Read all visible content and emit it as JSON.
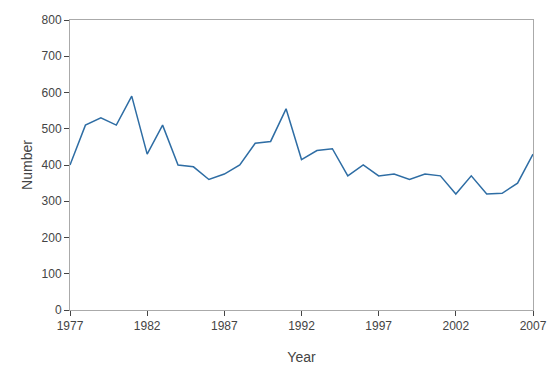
{
  "chart_data": {
    "type": "line",
    "x": [
      1977,
      1978,
      1979,
      1980,
      1981,
      1982,
      1983,
      1984,
      1985,
      1986,
      1987,
      1988,
      1989,
      1990,
      1991,
      1992,
      1993,
      1994,
      1995,
      1996,
      1997,
      1998,
      1999,
      2000,
      2001,
      2002,
      2003,
      2004,
      2005,
      2006,
      2007
    ],
    "values": [
      400,
      510,
      530,
      510,
      590,
      430,
      510,
      400,
      395,
      360,
      375,
      400,
      460,
      465,
      555,
      415,
      440,
      445,
      370,
      400,
      370,
      375,
      360,
      375,
      370,
      320,
      370,
      320,
      322,
      350,
      430
    ],
    "color": "#2e6da4",
    "xlabel": "Year",
    "ylabel": "Number",
    "xlim": [
      1977,
      2007
    ],
    "ylim": [
      0,
      800
    ],
    "xticks": [
      1977,
      1982,
      1987,
      1992,
      1997,
      2002,
      2007
    ],
    "yticks": [
      0,
      100,
      200,
      300,
      400,
      500,
      600,
      700,
      800
    ],
    "grid": false
  }
}
